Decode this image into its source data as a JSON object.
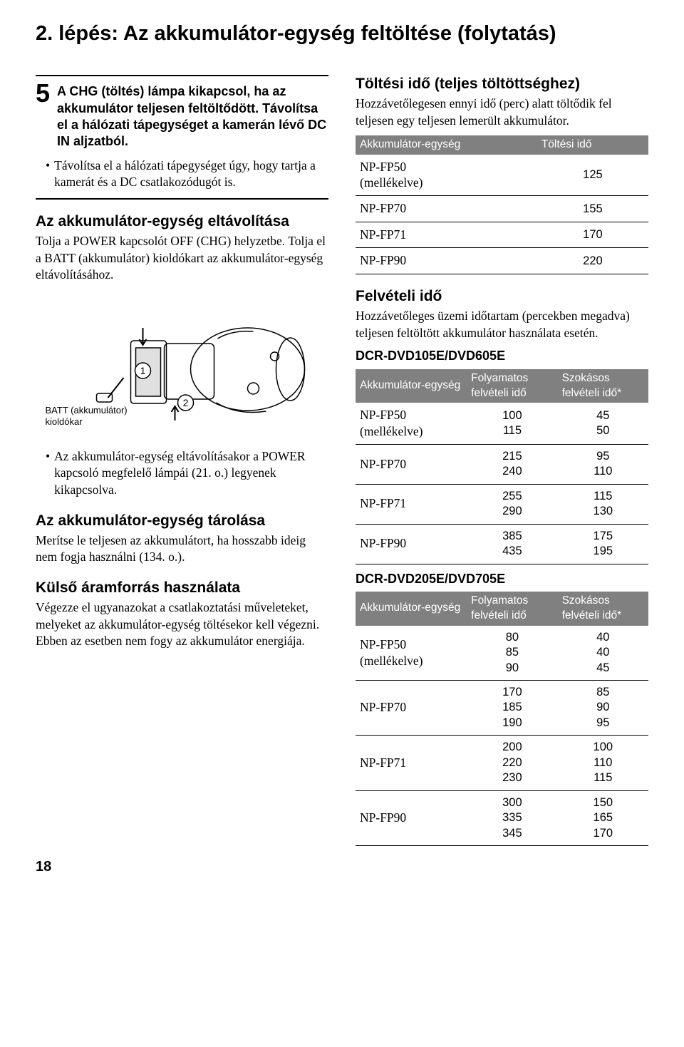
{
  "title": "2. lépés: Az akkumulátor-egység feltöltése (folytatás)",
  "step": {
    "num": "5",
    "text": "A CHG (töltés) lámpa kikapcsol, ha az akkumulátor teljesen feltöltődött. Távolítsa el a hálózati tápegységet a kamerán lévő DC IN aljzatból."
  },
  "bullet1": "Távolítsa el a hálózati tápegységet úgy, hogy tartja a kamerát és a DC csatlakozódugót is.",
  "remove": {
    "heading": "Az akkumulátor-egység eltávolítása",
    "text": "Tolja a POWER kapcsolót OFF (CHG) helyzetbe. Tolja el a BATT (akkumulátor) kioldókart az akkumulátor-egység eltávolításához."
  },
  "illus": {
    "label1": "BATT (akkumulátor) kioldókar",
    "callout1": "1",
    "callout2": "2"
  },
  "bullet2": "Az akkumulátor-egység eltávolításakor a POWER kapcsoló megfelelő lámpái (21. o.) legyenek kikapcsolva.",
  "storage": {
    "heading": "Az akkumulátor-egység tárolása",
    "text": "Merítse le teljesen az akkumulátort, ha hosszabb ideig nem fogja használni (134. o.)."
  },
  "external": {
    "heading": "Külső áramforrás használata",
    "text": "Végezze el ugyanazokat a csatlakoztatási műveleteket, melyeket az akkumulátor-egység töltésekor kell végezni. Ebben az esetben nem fogy az akkumulátor energiája."
  },
  "charging": {
    "heading": "Töltési idő (teljes töltöttséghez)",
    "text": "Hozzávetőlegesen ennyi idő (perc) alatt töltődik fel teljesen egy teljesen lemerült akkumulátor.",
    "table": {
      "header": [
        "Akkumulátor-egység",
        "Töltési idő"
      ],
      "rows": [
        {
          "name": "NP-FP50\n(mellékelve)",
          "time": "125"
        },
        {
          "name": "NP-FP70",
          "time": "155"
        },
        {
          "name": "NP-FP71",
          "time": "170"
        },
        {
          "name": "NP-FP90",
          "time": "220"
        }
      ]
    }
  },
  "recording": {
    "heading": "Felvételi idő",
    "text": "Hozzávetőleges üzemi időtartam (percekben megadva) teljesen feltöltött akkumulátor használata esetén."
  },
  "model1": {
    "heading": "DCR-DVD105E/DVD605E",
    "header": [
      "Akkumulátor-egység",
      "Folyamatos felvételi idő",
      "Szokásos felvételi idő*"
    ],
    "rows": [
      {
        "name": "NP-FP50\n(mellékelve)",
        "c": "100\n115",
        "t": "45\n50"
      },
      {
        "name": "NP-FP70",
        "c": "215\n240",
        "t": "95\n110"
      },
      {
        "name": "NP-FP71",
        "c": "255\n290",
        "t": "115\n130"
      },
      {
        "name": "NP-FP90",
        "c": "385\n435",
        "t": "175\n195"
      }
    ]
  },
  "model2": {
    "heading": "DCR-DVD205E/DVD705E",
    "header": [
      "Akkumulátor-egység",
      "Folyamatos felvételi idő",
      "Szokásos felvételi idő*"
    ],
    "rows": [
      {
        "name": "NP-FP50\n(mellékelve)",
        "c": "80\n85\n90",
        "t": "40\n40\n45"
      },
      {
        "name": "NP-FP70",
        "c": "170\n185\n190",
        "t": "85\n90\n95"
      },
      {
        "name": "NP-FP71",
        "c": "200\n220\n230",
        "t": "100\n110\n115"
      },
      {
        "name": "NP-FP90",
        "c": "300\n335\n345",
        "t": "150\n165\n170"
      }
    ]
  },
  "page_number": "18"
}
